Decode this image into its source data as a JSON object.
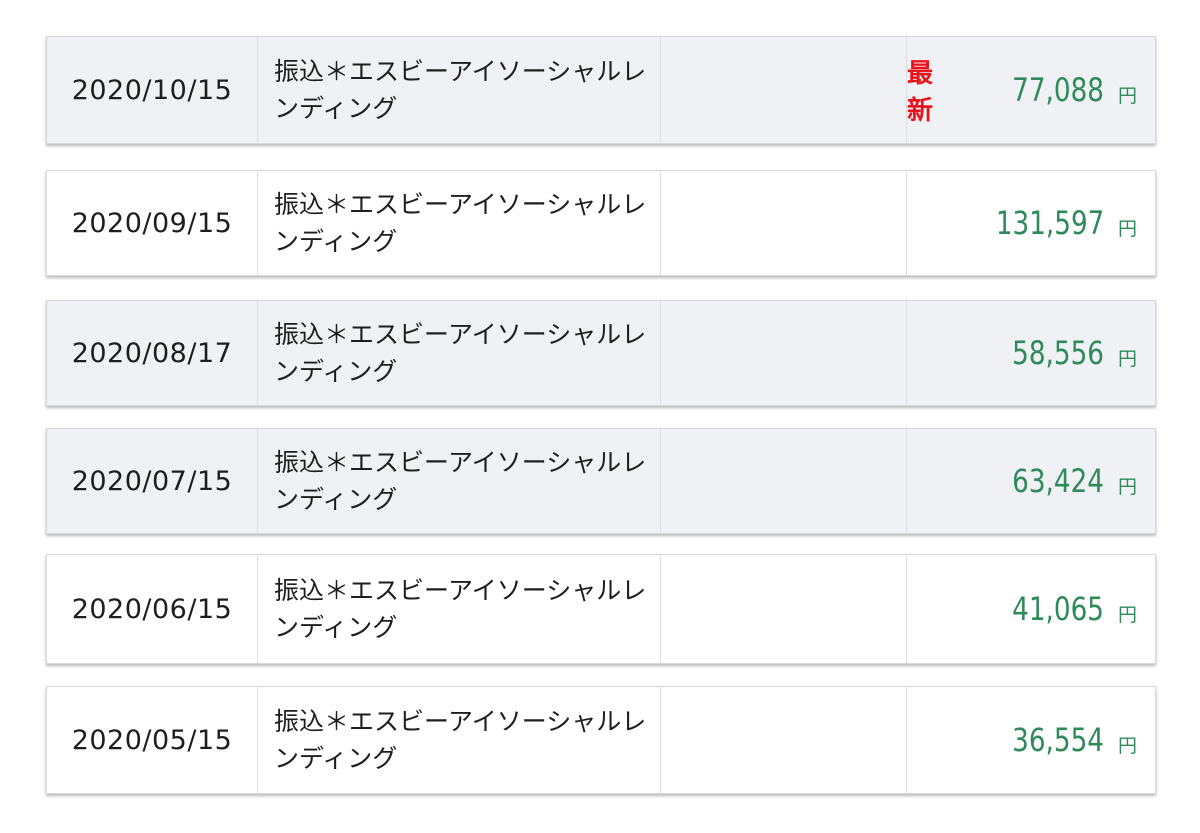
{
  "transactions": [
    {
      "date": "2020/10/15",
      "description": "振込＊エスビーアイソーシャルレンディング",
      "latest_label": "最新",
      "amount": "77,088",
      "currency": "円",
      "shaded": true
    },
    {
      "date": "2020/09/15",
      "description": "振込＊エスビーアイソーシャルレンディング",
      "latest_label": "",
      "amount": "131,597",
      "currency": "円",
      "shaded": false
    },
    {
      "date": "2020/08/17",
      "description": "振込＊エスビーアイソーシャルレンディング",
      "latest_label": "",
      "amount": "58,556",
      "currency": "円",
      "shaded": true
    },
    {
      "date": "2020/07/15",
      "description": "振込＊エスビーアイソーシャルレンディング",
      "latest_label": "",
      "amount": "63,424",
      "currency": "円",
      "shaded": true
    },
    {
      "date": "2020/06/15",
      "description": "振込＊エスビーアイソーシャルレンディング",
      "latest_label": "",
      "amount": "41,065",
      "currency": "円",
      "shaded": false
    },
    {
      "date": "2020/05/15",
      "description": "振込＊エスビーアイソーシャルレンディング",
      "latest_label": "",
      "amount": "36,554",
      "currency": "円",
      "shaded": false
    }
  ],
  "colors": {
    "amount": "#2e8a5a",
    "latest": "#e8141c",
    "row_shaded": "#eff1f4",
    "row_plain": "#ffffff"
  }
}
